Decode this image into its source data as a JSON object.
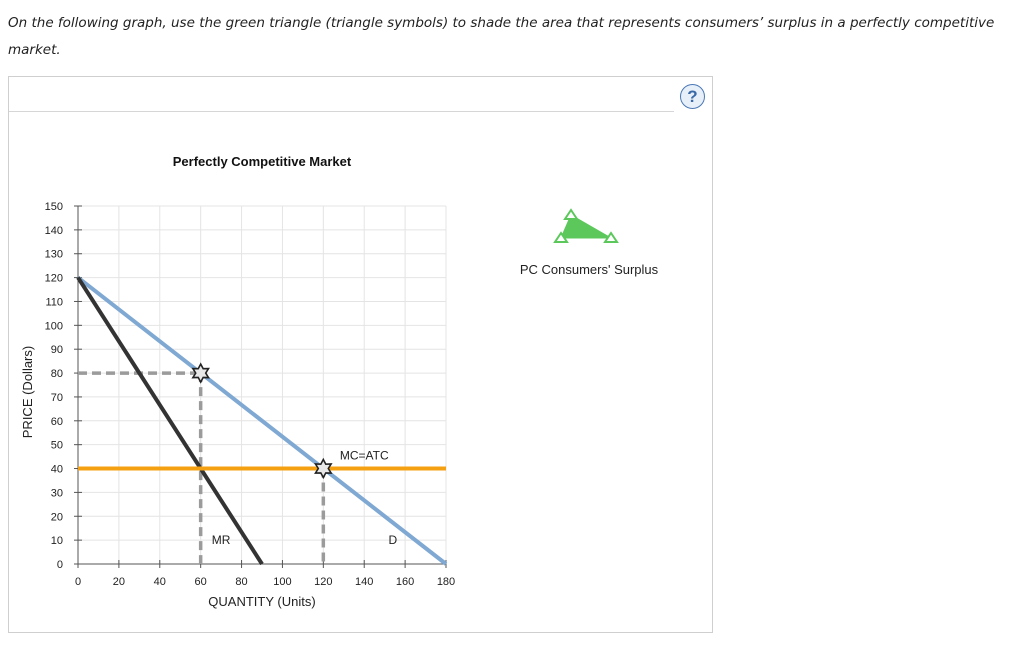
{
  "question": {
    "text": "On the following graph, use the green triangle (triangle symbols) to shade the area that represents consumers’ surplus in a perfectly competitive market."
  },
  "help": {
    "label": "?"
  },
  "tool": {
    "label": "PC Consumers' Surplus",
    "color": "#5cc85c"
  },
  "chart_data": {
    "type": "line",
    "title": "Perfectly Competitive Market",
    "xlabel": "QUANTITY (Units)",
    "ylabel": "PRICE (Dollars)",
    "xlim": [
      0,
      180
    ],
    "ylim": [
      0,
      150
    ],
    "xticks": [
      0,
      20,
      40,
      60,
      80,
      100,
      120,
      140,
      160,
      180
    ],
    "yticks": [
      0,
      10,
      20,
      30,
      40,
      50,
      60,
      70,
      80,
      90,
      100,
      110,
      120,
      130,
      140,
      150
    ],
    "grid": true,
    "series": [
      {
        "name": "D",
        "color": "#7fa8d2",
        "x": [
          0,
          180
        ],
        "y": [
          120,
          0
        ]
      },
      {
        "name": "MR",
        "color": "#333333",
        "x": [
          0,
          90
        ],
        "y": [
          120,
          0
        ]
      },
      {
        "name": "MC=ATC",
        "color": "#f5a011",
        "x": [
          0,
          180
        ],
        "y": [
          40,
          40
        ]
      }
    ],
    "dashed_lines": [
      {
        "points": [
          [
            0,
            80
          ],
          [
            60,
            80
          ]
        ]
      },
      {
        "points": [
          [
            60,
            80
          ],
          [
            60,
            0
          ]
        ]
      },
      {
        "points": [
          [
            120,
            40
          ],
          [
            120,
            0
          ]
        ]
      }
    ],
    "markers": [
      {
        "x": 60,
        "y": 80
      },
      {
        "x": 120,
        "y": 40
      }
    ],
    "annotations": [
      {
        "text": "MC=ATC",
        "x": 140,
        "y": 45.5
      },
      {
        "text": "MR",
        "x": 70,
        "y": 10
      },
      {
        "text": "D",
        "x": 154,
        "y": 10
      }
    ]
  }
}
